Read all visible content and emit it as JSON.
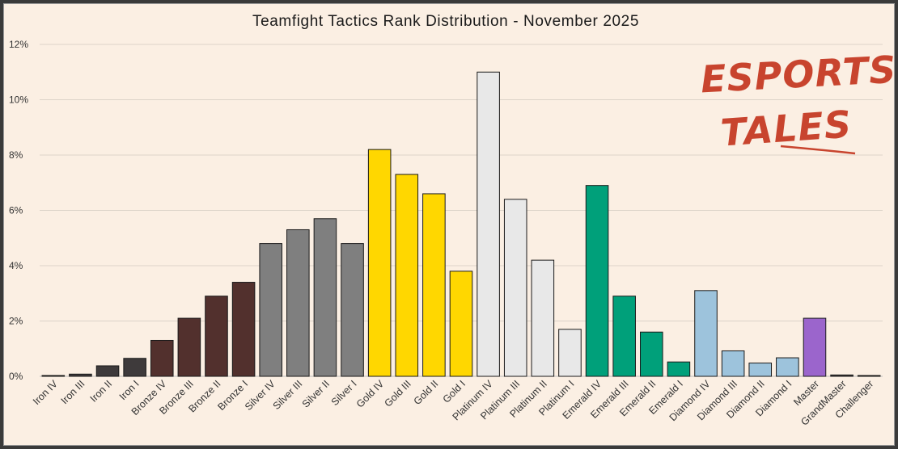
{
  "chart_data": {
    "type": "bar",
    "title": "Teamfight Tactics Rank Distribution - November 2025",
    "xlabel": "",
    "ylabel": "",
    "ylim": [
      0,
      12
    ],
    "yticks": [
      0,
      2,
      4,
      6,
      8,
      10,
      12
    ],
    "ytick_suffix": "%",
    "grid": true,
    "legend": "none",
    "categories": [
      "Iron IV",
      "Iron III",
      "Iron II",
      "Iron I",
      "Bronze IV",
      "Bronze III",
      "Bronze II",
      "Bronze I",
      "Silver IV",
      "Silver III",
      "Silver II",
      "Silver I",
      "Gold IV",
      "Gold III",
      "Gold II",
      "Gold I",
      "Platinum IV",
      "Platinum III",
      "Platinum II",
      "Platinum I",
      "Emerald IV",
      "Emerald III",
      "Emerald II",
      "Emerald I",
      "Diamond IV",
      "Diamond III",
      "Diamond II",
      "Diamond I",
      "Master",
      "GrandMaster",
      "Challenger"
    ],
    "values": [
      0.03,
      0.08,
      0.38,
      0.65,
      1.3,
      2.1,
      2.9,
      3.4,
      4.8,
      5.3,
      5.7,
      4.8,
      8.2,
      7.3,
      6.6,
      3.8,
      11.0,
      6.4,
      4.2,
      1.7,
      6.9,
      2.9,
      1.6,
      0.52,
      3.1,
      0.92,
      0.48,
      0.67,
      2.1,
      0.05,
      0.03
    ],
    "colors": [
      "#3e3a3b",
      "#3e3a3b",
      "#3e3a3b",
      "#3e3a3b",
      "#52302d",
      "#52302d",
      "#52302d",
      "#52302d",
      "#7f7f7f",
      "#7f7f7f",
      "#7f7f7f",
      "#7f7f7f",
      "#ffd700",
      "#ffd700",
      "#ffd700",
      "#ffd700",
      "#e8e8e8",
      "#e8e8e8",
      "#e8e8e8",
      "#e8e8e8",
      "#00a07a",
      "#00a07a",
      "#00a07a",
      "#00a07a",
      "#9dc3dc",
      "#9dc3dc",
      "#9dc3dc",
      "#9dc3dc",
      "#9b65cc",
      "#3e3a3b",
      "#3e3a3b"
    ]
  },
  "logo": {
    "line1": "ESPORTS",
    "line2": "TALES",
    "color": "#c8442e"
  }
}
